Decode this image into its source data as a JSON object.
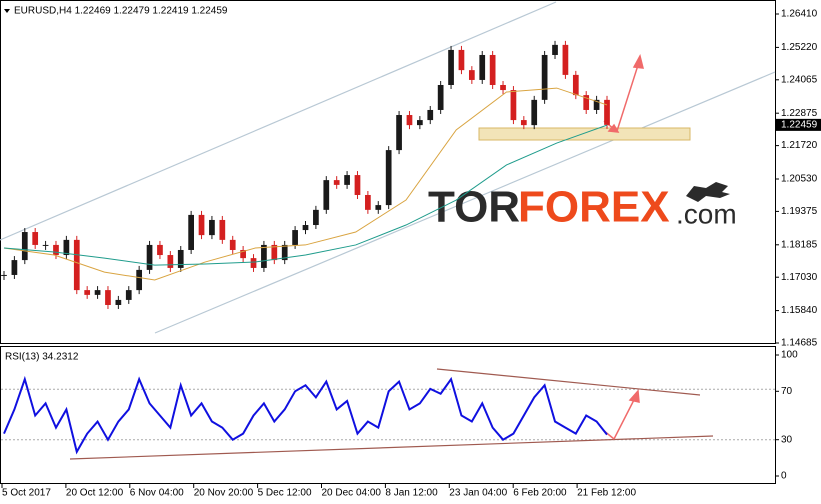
{
  "chart_data": [
    {
      "type": "candlestick",
      "title": "EURUSD,H4  1.22469 1.22479 1.22419 1.22459",
      "values": [
        1.1711,
        1.1764,
        1.1864,
        1.1818,
        1.1818,
        1.1782,
        1.1836,
        1.1657,
        1.164,
        1.1657,
        1.1604,
        1.1622,
        1.1657,
        1.1729,
        1.1818,
        1.1782,
        1.1736,
        1.18,
        1.1925,
        1.1853,
        1.1907,
        1.1836,
        1.18,
        1.1771,
        1.1736,
        1.1818,
        1.1764,
        1.1818,
        1.1871,
        1.1889,
        1.1943,
        1.2049,
        1.2032,
        1.2067,
        1.1996,
        1.1943,
        1.196,
        1.2156,
        1.2281,
        1.2245,
        1.2263,
        1.2299,
        1.2388,
        1.2513,
        1.2441,
        1.2406,
        1.2495,
        1.2388,
        1.237,
        1.2263,
        1.2245,
        1.2335,
        1.2495,
        1.2531,
        1.2424,
        1.2352,
        1.2299,
        1.2335,
        1.22459
      ],
      "up_color": "#1a1a1a",
      "down_color": "#d42020",
      "moving_averages": [
        {
          "color": "#d9a441",
          "values": [
            1.1807,
            1.1782,
            1.1721,
            1.1693,
            1.1757,
            1.1807,
            1.1818,
            1.1864,
            1.1978,
            1.2228,
            1.2363,
            1.2377,
            1.2317
          ]
        },
        {
          "color": "#1f9c8c",
          "values": [
            1.1807,
            1.1793,
            1.1771,
            1.1746,
            1.175,
            1.1757,
            1.1782,
            1.1818,
            1.1889,
            1.1978,
            1.2103,
            1.2181,
            1.2245
          ]
        }
      ],
      "ylim": [
        1.14685,
        1.26838
      ],
      "yticks": [
        {
          "value": 1.2641,
          "label": "1.26410"
        },
        {
          "value": 1.2522,
          "label": "1.25220"
        },
        1.24065,
        1.22875,
        {
          "value": 1.2172,
          "label": "1.21720"
        },
        {
          "value": 1.2053,
          "label": "1.20530"
        },
        1.19375,
        1.18185,
        {
          "value": 1.1703,
          "label": "1.17030"
        },
        {
          "value": 1.1584,
          "label": "1.15840"
        },
        1.14685
      ],
      "last_price": 1.22459,
      "watermark": [
        "TOR",
        "FOREX",
        ".com"
      ]
    },
    {
      "type": "line",
      "title": "RSI(13) 34.2312",
      "color": "#1010e0",
      "values": [
        35,
        55,
        80,
        50,
        60,
        40,
        55,
        20,
        35,
        45,
        30,
        45,
        55,
        80,
        60,
        50,
        40,
        75,
        50,
        60,
        45,
        40,
        30,
        35,
        50,
        60,
        45,
        55,
        70,
        75,
        65,
        78,
        55,
        62,
        35,
        45,
        40,
        70,
        78,
        55,
        60,
        72,
        68,
        80,
        50,
        45,
        60,
        40,
        30,
        35,
        50,
        65,
        75,
        45,
        40,
        35,
        50,
        45,
        34.2312
      ],
      "ylim": [
        0,
        100
      ],
      "yticks": [
        100,
        70,
        30,
        0
      ],
      "x_tick_labels": [
        "5 Oct 2017",
        "20 Oct 12:00",
        "6 Nov 04:00",
        "20 Nov 20:00",
        "5 Dec 12:00",
        "20 Dec 04:00",
        "8 Jan 12:00",
        "23 Jan 04:00",
        "6 Feb 20:00",
        "21 Feb 12:00"
      ]
    }
  ]
}
